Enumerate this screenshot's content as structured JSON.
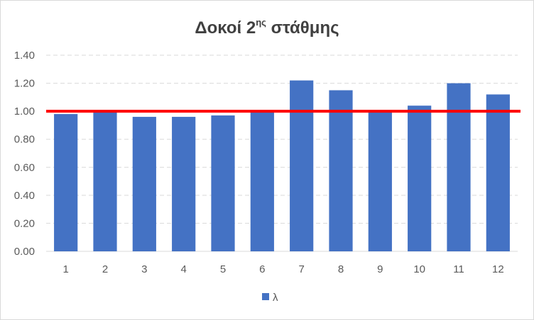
{
  "chart_data": {
    "type": "bar",
    "title": "Δοκοί 2",
    "title_superscript": "ης",
    "title_suffix": " στάθμης",
    "categories": [
      "1",
      "2",
      "3",
      "4",
      "5",
      "6",
      "7",
      "8",
      "9",
      "10",
      "11",
      "12"
    ],
    "series": [
      {
        "name": "λ",
        "values": [
          0.98,
          1.0,
          0.96,
          0.96,
          0.97,
          1.0,
          1.22,
          1.15,
          1.0,
          1.04,
          1.2,
          1.12
        ],
        "color": "#4472C4"
      }
    ],
    "reference_line": {
      "value": 1.0,
      "color": "#FF0000"
    },
    "ylim": [
      0,
      1.4
    ],
    "yticks": [
      "0.00",
      "0.20",
      "0.40",
      "0.60",
      "0.80",
      "1.00",
      "1.20",
      "1.40"
    ],
    "ytick_values": [
      0,
      0.2,
      0.4,
      0.6,
      0.8,
      1.0,
      1.2,
      1.4
    ],
    "grid": true,
    "legend_position": "bottom"
  }
}
